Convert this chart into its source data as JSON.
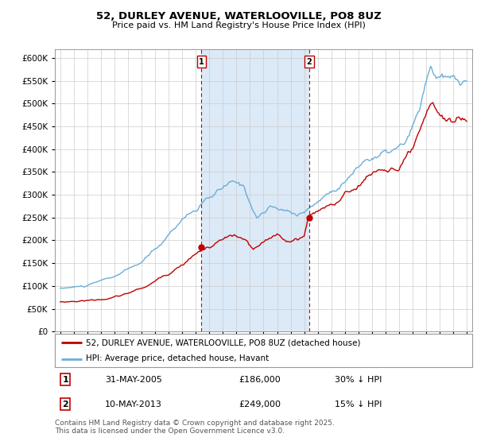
{
  "title": "52, DURLEY AVENUE, WATERLOOVILLE, PO8 8UZ",
  "subtitle": "Price paid vs. HM Land Registry's House Price Index (HPI)",
  "legend_house": "52, DURLEY AVENUE, WATERLOOVILLE, PO8 8UZ (detached house)",
  "legend_hpi": "HPI: Average price, detached house, Havant",
  "footer": "Contains HM Land Registry data © Crown copyright and database right 2025.\nThis data is licensed under the Open Government Licence v3.0.",
  "marker1_date": "31-MAY-2005",
  "marker1_price": "£186,000",
  "marker1_hpi": "30% ↓ HPI",
  "marker1_year": 2005.42,
  "marker2_date": "10-MAY-2013",
  "marker2_price": "£249,000",
  "marker2_hpi": "15% ↓ HPI",
  "marker2_year": 2013.36,
  "hpi_color": "#6baed6",
  "house_color": "#c00000",
  "marker_color": "#c00000",
  "shade_color": "#dce9f7",
  "background_color": "#ffffff",
  "plot_bg": "#ffffff",
  "grid_color": "#cccccc",
  "ylim": [
    0,
    620000
  ],
  "yticks": [
    0,
    50000,
    100000,
    150000,
    200000,
    250000,
    300000,
    350000,
    400000,
    450000,
    500000,
    550000,
    600000
  ],
  "xlim_left": 1994.6,
  "xlim_right": 2025.4
}
